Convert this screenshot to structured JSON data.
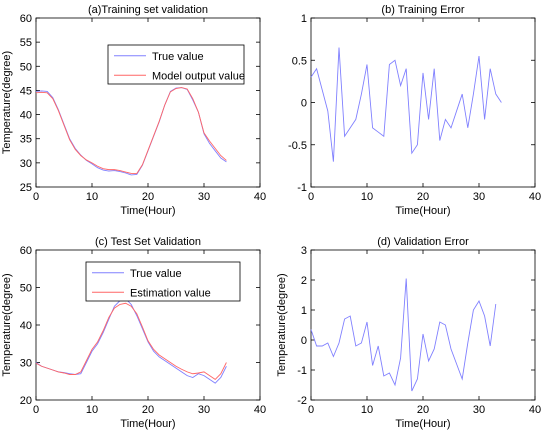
{
  "chart_data": [
    {
      "type": "line",
      "title": "(a)Training set validation",
      "xlabel": "Time(Hour)",
      "ylabel": "Temperature(degree)",
      "xlim": [
        0,
        40
      ],
      "ylim": [
        25,
        60
      ],
      "xticks": [
        0,
        10,
        20,
        30,
        40
      ],
      "yticks": [
        25,
        30,
        35,
        40,
        45,
        50,
        55,
        60
      ],
      "grid": false,
      "legend": "top-right",
      "x": [
        0,
        1,
        2,
        3,
        4,
        5,
        6,
        7,
        8,
        9,
        10,
        11,
        12,
        13,
        14,
        15,
        16,
        17,
        18,
        19,
        20,
        21,
        22,
        23,
        24,
        25,
        26,
        27,
        28,
        29,
        30,
        31,
        32,
        33,
        34
      ],
      "series": [
        {
          "name": "True value",
          "color": "#8080ff",
          "values": [
            44.8,
            44.9,
            44.8,
            43.5,
            41,
            38,
            35,
            33,
            31.6,
            30.5,
            29.8,
            29,
            28.5,
            28.3,
            28.4,
            28.2,
            27.9,
            27.5,
            27.6,
            29.5,
            32.5,
            35.5,
            38.5,
            42,
            44.8,
            45.5,
            45.6,
            45.2,
            43,
            40.5,
            36,
            34,
            32.5,
            31,
            30.2
          ]
        },
        {
          "name": "Model output value",
          "color": "#ff6666",
          "values": [
            44.5,
            44.6,
            44.5,
            43.3,
            40.8,
            37.8,
            34.8,
            32.8,
            31.5,
            30.6,
            30,
            29.3,
            28.8,
            28.6,
            28.6,
            28.4,
            28.1,
            27.8,
            27.8,
            29.6,
            32.6,
            35.6,
            38.6,
            42,
            44.7,
            45.4,
            45.6,
            45.3,
            43.3,
            40.5,
            36.2,
            34.5,
            33,
            31.5,
            30.5
          ]
        }
      ]
    },
    {
      "type": "line",
      "title": "(b) Training Error",
      "xlabel": "Time(Hour)",
      "ylabel": "",
      "xlim": [
        0,
        40
      ],
      "ylim": [
        -1,
        1
      ],
      "xticks": [
        0,
        10,
        20,
        30,
        40
      ],
      "yticks": [
        -1,
        -0.5,
        0,
        0.5,
        1
      ],
      "grid": false,
      "x": [
        0,
        1,
        2,
        3,
        4,
        5,
        6,
        7,
        8,
        9,
        10,
        11,
        12,
        13,
        14,
        15,
        16,
        17,
        18,
        19,
        20,
        21,
        22,
        23,
        24,
        25,
        26,
        27,
        28,
        29,
        30,
        31,
        32,
        33,
        34
      ],
      "series": [
        {
          "color": "#8080ff",
          "values": [
            0.3,
            0.4,
            0.15,
            -0.1,
            -0.7,
            0.65,
            -0.4,
            -0.3,
            -0.2,
            0.1,
            0.45,
            -0.3,
            -0.35,
            -0.4,
            0.45,
            0.5,
            0.2,
            0.4,
            -0.6,
            -0.5,
            0.35,
            -0.2,
            0.4,
            -0.45,
            -0.2,
            -0.3,
            -0.1,
            0.1,
            -0.3,
            0.1,
            0.55,
            -0.2,
            0.4,
            0.1,
            0
          ]
        }
      ]
    },
    {
      "type": "line",
      "title": "(c) Test Set Validation",
      "xlabel": "Time(Hour)",
      "ylabel": "Temperature(degree)",
      "xlim": [
        0,
        40
      ],
      "ylim": [
        20,
        60
      ],
      "xticks": [
        0,
        10,
        20,
        30,
        40
      ],
      "yticks": [
        20,
        30,
        40,
        50,
        60
      ],
      "grid": false,
      "legend": "top-right",
      "x": [
        0,
        1,
        2,
        3,
        4,
        5,
        6,
        7,
        8,
        9,
        10,
        11,
        12,
        13,
        14,
        15,
        16,
        17,
        18,
        19,
        20,
        21,
        22,
        23,
        24,
        25,
        26,
        27,
        28,
        29,
        30,
        31,
        32,
        33,
        34
      ],
      "series": [
        {
          "name": "True value",
          "color": "#8080ff",
          "values": [
            30,
            29,
            28.5,
            28,
            27.5,
            27.3,
            27,
            26.8,
            27,
            30,
            33,
            35,
            38,
            41.5,
            45,
            46.5,
            47,
            45.5,
            42.5,
            39,
            35.5,
            33,
            31.5,
            30.5,
            29.5,
            28.5,
            27.5,
            26.5,
            26,
            27,
            26.5,
            25.5,
            24.5,
            26,
            29
          ]
        },
        {
          "name": "Estimation value",
          "color": "#ff6666",
          "values": [
            29.8,
            29,
            28.5,
            28,
            27.5,
            27.2,
            26.8,
            26.8,
            27.5,
            30.5,
            33.5,
            35.5,
            38.5,
            42,
            44.5,
            45.5,
            45.8,
            45,
            43,
            39.5,
            35.8,
            33.5,
            32,
            31,
            30,
            29,
            28.2,
            27.5,
            27,
            27.2,
            27.5,
            26.5,
            25.5,
            27,
            30
          ]
        }
      ]
    },
    {
      "type": "line",
      "title": "(d) Validation Error",
      "xlabel": "Time(Hour)",
      "ylabel": "Temperature(degree)",
      "xlim": [
        0,
        40
      ],
      "ylim": [
        -2,
        3
      ],
      "xticks": [
        0,
        10,
        20,
        30,
        40
      ],
      "yticks": [
        -2,
        -1,
        0,
        1,
        2,
        3
      ],
      "grid": false,
      "x": [
        0,
        1,
        2,
        3,
        4,
        5,
        6,
        7,
        8,
        9,
        10,
        11,
        12,
        13,
        14,
        15,
        16,
        17,
        18,
        19,
        20,
        21,
        22,
        23,
        24,
        25,
        26,
        27,
        28,
        29,
        30,
        31,
        32,
        33,
        34
      ],
      "series": [
        {
          "color": "#8080ff",
          "values": [
            0.35,
            -0.2,
            -0.2,
            -0.1,
            -0.55,
            -0.1,
            0.7,
            0.8,
            -0.2,
            -0.1,
            0.6,
            -0.85,
            -0.2,
            -1.2,
            -1.1,
            -1.5,
            -0.6,
            2.05,
            -1.7,
            -1.3,
            0.2,
            -0.7,
            -0.3,
            0.6,
            0.5,
            -0.3,
            -0.8,
            -1.3,
            -0.1,
            1,
            1.3,
            0.8,
            -0.2,
            1.2,
            null
          ]
        }
      ]
    }
  ]
}
